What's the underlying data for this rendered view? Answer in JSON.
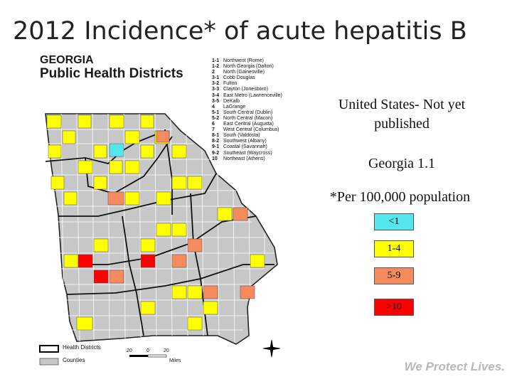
{
  "slide": {
    "title": "2012 Incidence* of acute hepatitis B",
    "us_text": "United States- Not yet published",
    "georgia_text": "Georgia 1.1",
    "per_text": "*Per 100,000 population",
    "footer": "We Protect Lives."
  },
  "map": {
    "heading_line1": "GEORGIA",
    "heading_line2": "Public Health Districts",
    "legend_districts": "Health Districts",
    "legend_counties": "Counties",
    "scale_labels": [
      "20",
      "0",
      "20"
    ],
    "scale_unit": "Miles",
    "districts": [
      {
        "code": "1-1",
        "name": "Northwest (Rome)"
      },
      {
        "code": "1-2",
        "name": "North Georgia (Dalton)"
      },
      {
        "code": "2",
        "name": "North (Gainesville)"
      },
      {
        "code": "3-1",
        "name": "Cobb Douglas"
      },
      {
        "code": "3-2",
        "name": "Fulton"
      },
      {
        "code": "3-3",
        "name": "Clayton (Jonesboro)"
      },
      {
        "code": "3-4",
        "name": "East Metro (Lawrenceville)"
      },
      {
        "code": "3-5",
        "name": "DeKalb"
      },
      {
        "code": "4",
        "name": "LaGrange"
      },
      {
        "code": "5-1",
        "name": "South Central (Dublin)"
      },
      {
        "code": "5-2",
        "name": "North Central (Macon)"
      },
      {
        "code": "6",
        "name": "East Central (Augusta)"
      },
      {
        "code": "7",
        "name": "West Central (Columbus)"
      },
      {
        "code": "8-1",
        "name": "South (Valdosta)"
      },
      {
        "code": "8-2",
        "name": "Southwest (Albany)"
      },
      {
        "code": "9-1",
        "name": "Coastal (Savannah)"
      },
      {
        "code": "9-2",
        "name": "Southeast (Waycross)"
      },
      {
        "code": "10",
        "name": "Northeast (Athens)"
      }
    ]
  },
  "legend": {
    "categories": [
      {
        "label": "<1",
        "color": "#55e6ec"
      },
      {
        "label": "1-4",
        "color": "#ffff00"
      },
      {
        "label": "5-9",
        "color": "#f58a5c"
      },
      {
        "label": ">10",
        "color": "#ff0000"
      }
    ]
  }
}
